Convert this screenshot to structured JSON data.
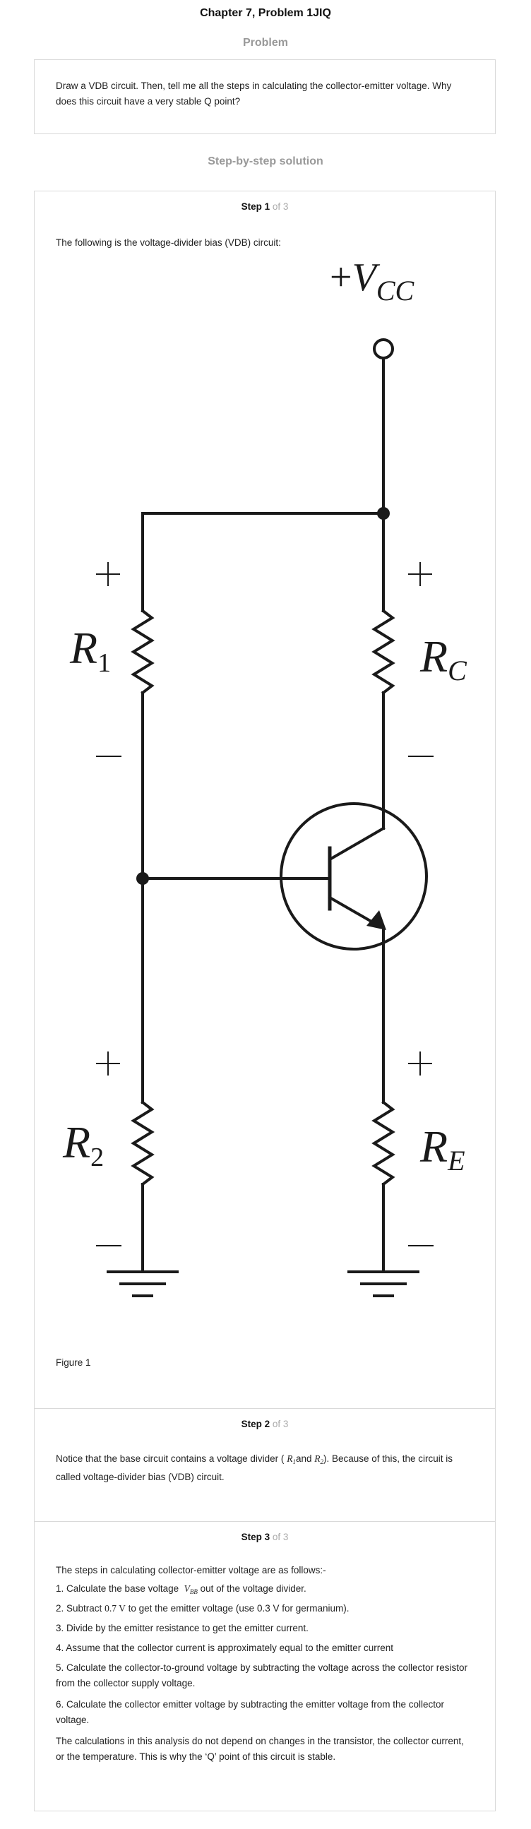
{
  "header": {
    "title": "Chapter 7, Problem 1JIQ"
  },
  "problem": {
    "heading": "Problem",
    "text": "Draw a VDB circuit. Then, tell me all the steps in calculating the collector-emitter voltage. Why does this circuit have a very stable Q point?"
  },
  "solution": {
    "heading": "Step-by-step solution",
    "step1": {
      "label": "Step 1",
      "of": "of 3",
      "intro": "The following is the voltage-divider bias (VDB) circuit:",
      "figure_caption": "Figure 1",
      "circuit": {
        "vcc_plus": "+",
        "vcc_v": "V",
        "vcc_sub": "CC",
        "r1": "R",
        "r1_sub": "1",
        "r2": "R",
        "r2_sub": "2",
        "rc": "R",
        "rc_sub": "C",
        "re": "R",
        "re_sub": "E",
        "plus": "+",
        "minus": "—"
      }
    },
    "step2": {
      "label": "Step 2",
      "of": "of 3",
      "text_a": "Notice that the base circuit contains a voltage divider (",
      "r1": "R",
      "r1_sub": "1",
      "and": "and",
      "r2": "R",
      "r2_sub": "2",
      "text_b": "). Because of this, the circuit is called voltage-divider bias (VDB) circuit."
    },
    "step3": {
      "label": "Step 3",
      "of": "of 3",
      "intro": "The steps in calculating collector-emitter voltage are as follows:-",
      "item1_a": "1. Calculate the base voltage",
      "item1_var": "V",
      "item1_sub": "BB",
      "item1_b": "out of the voltage divider.",
      "item2_a": "2. Subtract",
      "item2_val": "0.7 V",
      "item2_b": "to get the emitter voltage (use 0.3 V for germanium).",
      "item3": "3. Divide by the emitter resistance to get the emitter current.",
      "item4": "4. Assume that the collector current is approximately equal to the emitter current",
      "item5": "5. Calculate the collector-to-ground voltage by subtracting the voltage across the collector resistor from the collector supply voltage.",
      "item6": "6. Calculate the collector emitter voltage by subtracting the emitter voltage from the collector voltage.",
      "conclusion": "The calculations in this analysis do not depend on changes in the transistor, the collector current, or the temperature. This is why the ‘Q’ point of this circuit is stable."
    }
  }
}
